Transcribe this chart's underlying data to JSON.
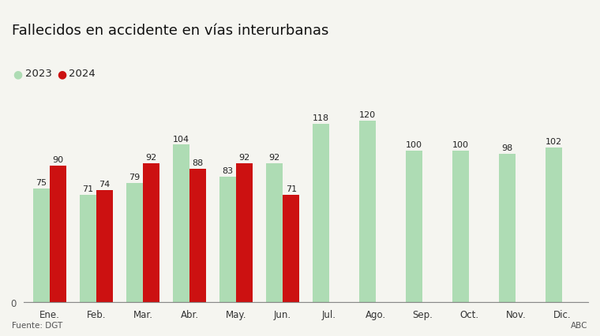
{
  "title": "Fallecidos en accidente en vías interurbanas",
  "months": [
    "Ene.",
    "Feb.",
    "Mar.",
    "Abr.",
    "May.",
    "Jun.",
    "Jul.",
    "Ago.",
    "Sep.",
    "Oct.",
    "Nov.",
    "Dic."
  ],
  "values_2023": [
    75,
    71,
    79,
    104,
    83,
    92,
    118,
    120,
    100,
    100,
    98,
    102
  ],
  "values_2024": [
    90,
    74,
    92,
    88,
    92,
    71,
    null,
    null,
    null,
    null,
    null,
    null
  ],
  "color_2023": "#aedcb4",
  "color_2024": "#cc1111",
  "bar_width": 0.36,
  "ylim": [
    0,
    140
  ],
  "legend_2023": "2023",
  "legend_2024": "2024",
  "source_text": "Fuente: DGT",
  "source_right": "ABC",
  "label_fontsize": 8,
  "title_fontsize": 13,
  "legend_fontsize": 9.5,
  "tick_fontsize": 8.5,
  "background_color": "#f5f5f0"
}
